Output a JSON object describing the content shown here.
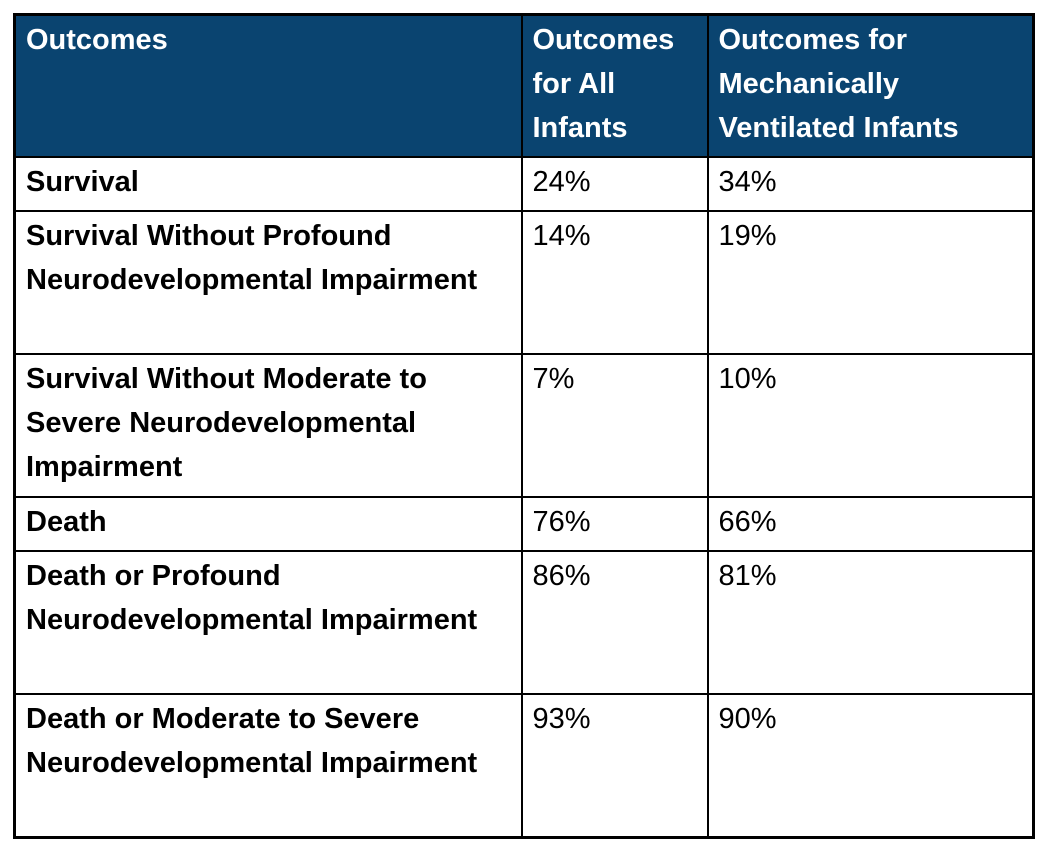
{
  "colors": {
    "header_bg": "#0a4470",
    "header_text": "#ffffff",
    "body_text": "#000000",
    "border": "#000000",
    "page_bg": "#ffffff"
  },
  "table": {
    "header": [
      "Outcomes",
      "Outcomes for All Infants",
      "Outcomes for Mechanically Ventilated Infants"
    ],
    "rows": [
      {
        "outcome": "Survival",
        "all_infants": "24%",
        "ventilated_infants": "34%"
      },
      {
        "outcome": "Survival Without Profound Neurodevelopmental Impairment",
        "all_infants": "14%",
        "ventilated_infants": "19%"
      },
      {
        "outcome": "Survival Without Moderate to Severe Neurodevelopmental Impairment",
        "all_infants": "7%",
        "ventilated_infants": "10%"
      },
      {
        "outcome": "Death",
        "all_infants": "76%",
        "ventilated_infants": "66%"
      },
      {
        "outcome": "Death or Profound Neurodevelopmental Impairment",
        "all_infants": "86%",
        "ventilated_infants": "81%"
      },
      {
        "outcome": "Death or Moderate to Severe Neurodevelopmental Impairment",
        "all_infants": "93%",
        "ventilated_infants": "90%"
      }
    ]
  }
}
